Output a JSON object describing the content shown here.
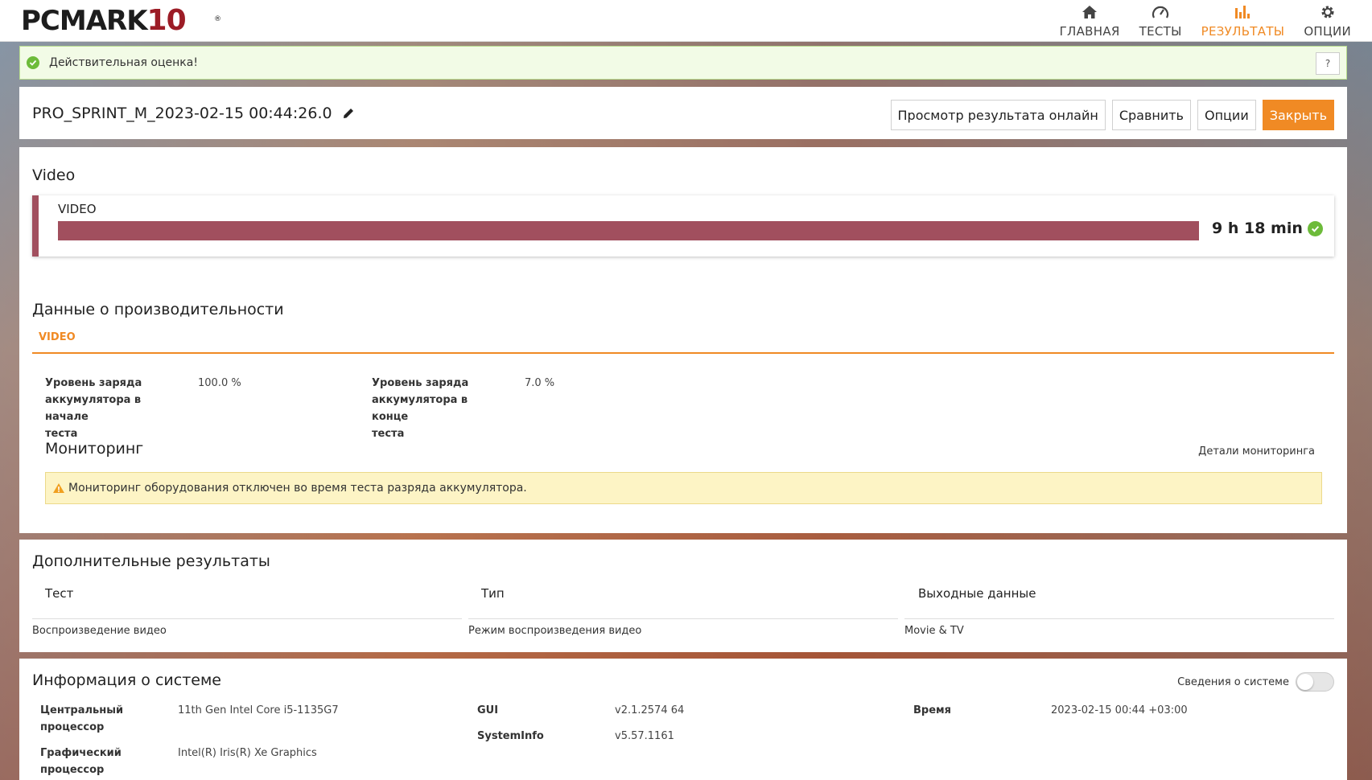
{
  "app": {
    "logo_text": "PCMARK",
    "logo_number": "10",
    "logo_reg": "®"
  },
  "nav": {
    "items": [
      {
        "label": "ГЛАВНАЯ",
        "icon": "home-icon"
      },
      {
        "label": "ТЕСТЫ",
        "icon": "speedometer-icon"
      },
      {
        "label": "РЕЗУЛЬТАТЫ",
        "icon": "bar-chart-icon",
        "active": true
      },
      {
        "label": "ОПЦИИ",
        "icon": "gear-icon"
      }
    ]
  },
  "banner": {
    "text": "Действительная оценка!",
    "help": "?"
  },
  "header": {
    "result_name": "PRO_SPRINT_M_2023-02-15 00:44:26.0",
    "buttons": {
      "view_online": "Просмотр результата онлайн",
      "compare": "Сравнить",
      "options": "Опции",
      "close": "Закрыть"
    }
  },
  "video": {
    "section_title": "Video",
    "card_label": "VIDEO",
    "score": "9 h 18 min",
    "bar_fill": 1.0,
    "color": "#a14f5e"
  },
  "performance": {
    "title": "Данные о производительности",
    "tab": "VIDEO",
    "battery_start": {
      "label": [
        "Уровень заряда",
        "аккумулятора в начале",
        "теста"
      ],
      "value": "100.0 %"
    },
    "battery_end": {
      "label": [
        "Уровень заряда",
        "аккумулятора в конце",
        "теста"
      ],
      "value": "7.0 %"
    },
    "monitoring_title": "Мониторинг",
    "monitoring_details": "Детали мониторинга",
    "warning": "Мониторинг оборудования отключен во время теста разряда аккумулятора."
  },
  "additional": {
    "title": "Дополнительные результаты",
    "columns": [
      "Тест",
      "Тип",
      "Выходные данные"
    ],
    "row": [
      "Воспроизведение видео",
      "Режим воспроизведения видео",
      "Movie & TV"
    ]
  },
  "system": {
    "title": "Информация о системе",
    "toggle_label": "Сведения о системе",
    "cpu_label": [
      "Центральный",
      "процессор"
    ],
    "cpu_value": "11th Gen Intel Core i5-1135G7",
    "gpu_label": [
      "Графический",
      "процессор"
    ],
    "gpu_value": "Intel(R) Iris(R) Xe Graphics",
    "gui_label": "GUI",
    "gui_value": "v2.1.2574 64",
    "sysinfo_label": "SystemInfo",
    "sysinfo_value": "v5.57.1161",
    "time_label": "Время",
    "time_value": "2023-02-15 00:44 +03:00"
  },
  "colors": {
    "accent": "#f08a24",
    "valid": "#6dbb3a",
    "logo_red": "#9c1c26"
  }
}
